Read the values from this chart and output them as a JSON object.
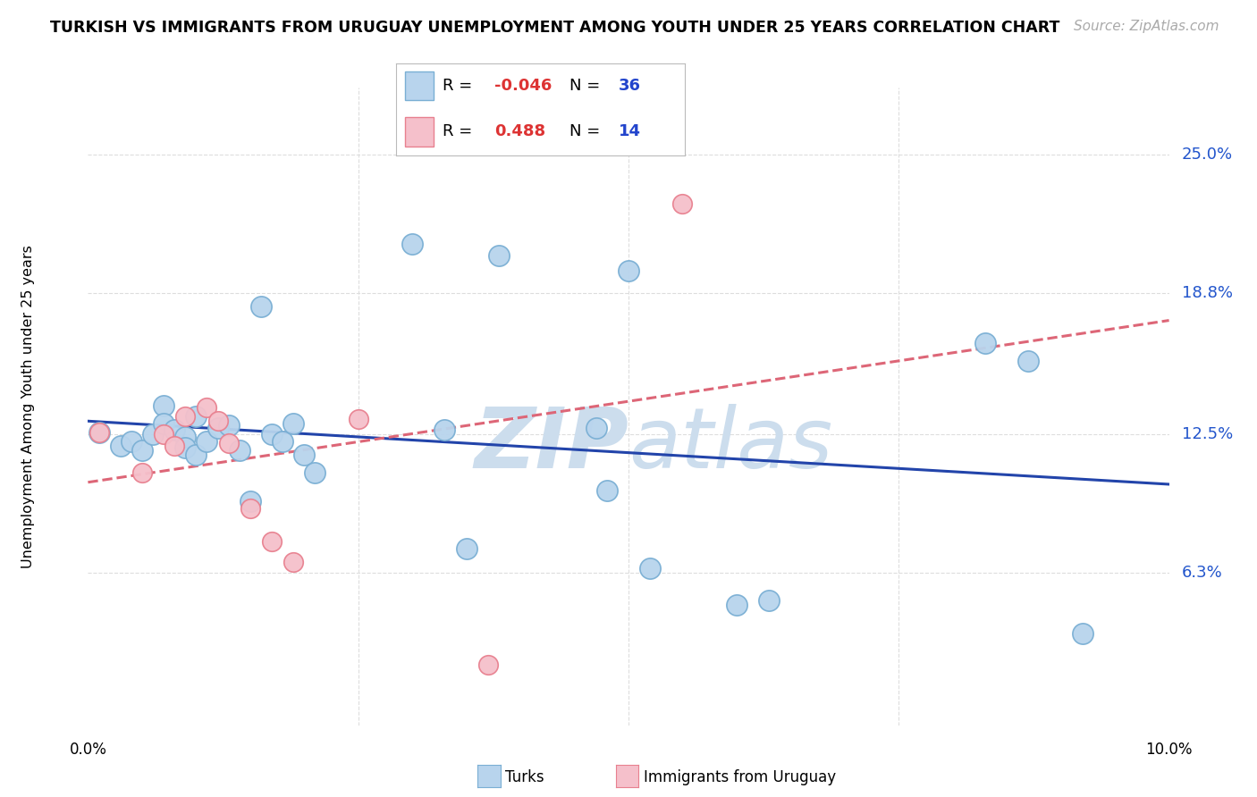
{
  "title": "TURKISH VS IMMIGRANTS FROM URUGUAY UNEMPLOYMENT AMONG YOUTH UNDER 25 YEARS CORRELATION CHART",
  "source": "Source: ZipAtlas.com",
  "ylabel_label": "Unemployment Among Youth under 25 years",
  "xlim": [
    0.0,
    0.1
  ],
  "ylim": [
    -0.005,
    0.28
  ],
  "ylabel_ticks_labels": [
    "25.0%",
    "18.8%",
    "12.5%",
    "6.3%"
  ],
  "ylabel_ticks_values": [
    0.25,
    0.188,
    0.125,
    0.063
  ],
  "xtick_labels": [
    "0.0%",
    "10.0%"
  ],
  "xtick_values": [
    0.0,
    0.1
  ],
  "turks_R": -0.046,
  "turks_N": 36,
  "uruguay_R": 0.488,
  "uruguay_N": 14,
  "turks_color": "#b8d4ed",
  "turks_edge_color": "#7aafd4",
  "uruguay_color": "#f5c0cb",
  "uruguay_edge_color": "#e8808f",
  "turks_line_color": "#2244aa",
  "uruguay_line_color": "#dd6677",
  "watermark_color": "#ccdded",
  "grid_color": "#dddddd",
  "turks_x": [
    0.001,
    0.003,
    0.004,
    0.005,
    0.006,
    0.007,
    0.007,
    0.008,
    0.009,
    0.009,
    0.01,
    0.01,
    0.011,
    0.012,
    0.013,
    0.014,
    0.015,
    0.016,
    0.017,
    0.018,
    0.019,
    0.02,
    0.021,
    0.03,
    0.033,
    0.035,
    0.038,
    0.047,
    0.048,
    0.05,
    0.052,
    0.06,
    0.063,
    0.083,
    0.087,
    0.092
  ],
  "turks_y": [
    0.126,
    0.12,
    0.122,
    0.118,
    0.125,
    0.138,
    0.13,
    0.127,
    0.124,
    0.119,
    0.116,
    0.133,
    0.122,
    0.128,
    0.129,
    0.118,
    0.095,
    0.182,
    0.125,
    0.122,
    0.13,
    0.116,
    0.108,
    0.21,
    0.127,
    0.074,
    0.205,
    0.128,
    0.1,
    0.198,
    0.065,
    0.049,
    0.051,
    0.166,
    0.158,
    0.036
  ],
  "uruguay_x": [
    0.001,
    0.005,
    0.007,
    0.008,
    0.009,
    0.011,
    0.012,
    0.013,
    0.015,
    0.017,
    0.019,
    0.025,
    0.037,
    0.055
  ],
  "uruguay_y": [
    0.126,
    0.108,
    0.125,
    0.12,
    0.133,
    0.137,
    0.131,
    0.121,
    0.092,
    0.077,
    0.068,
    0.132,
    0.022,
    0.228
  ]
}
